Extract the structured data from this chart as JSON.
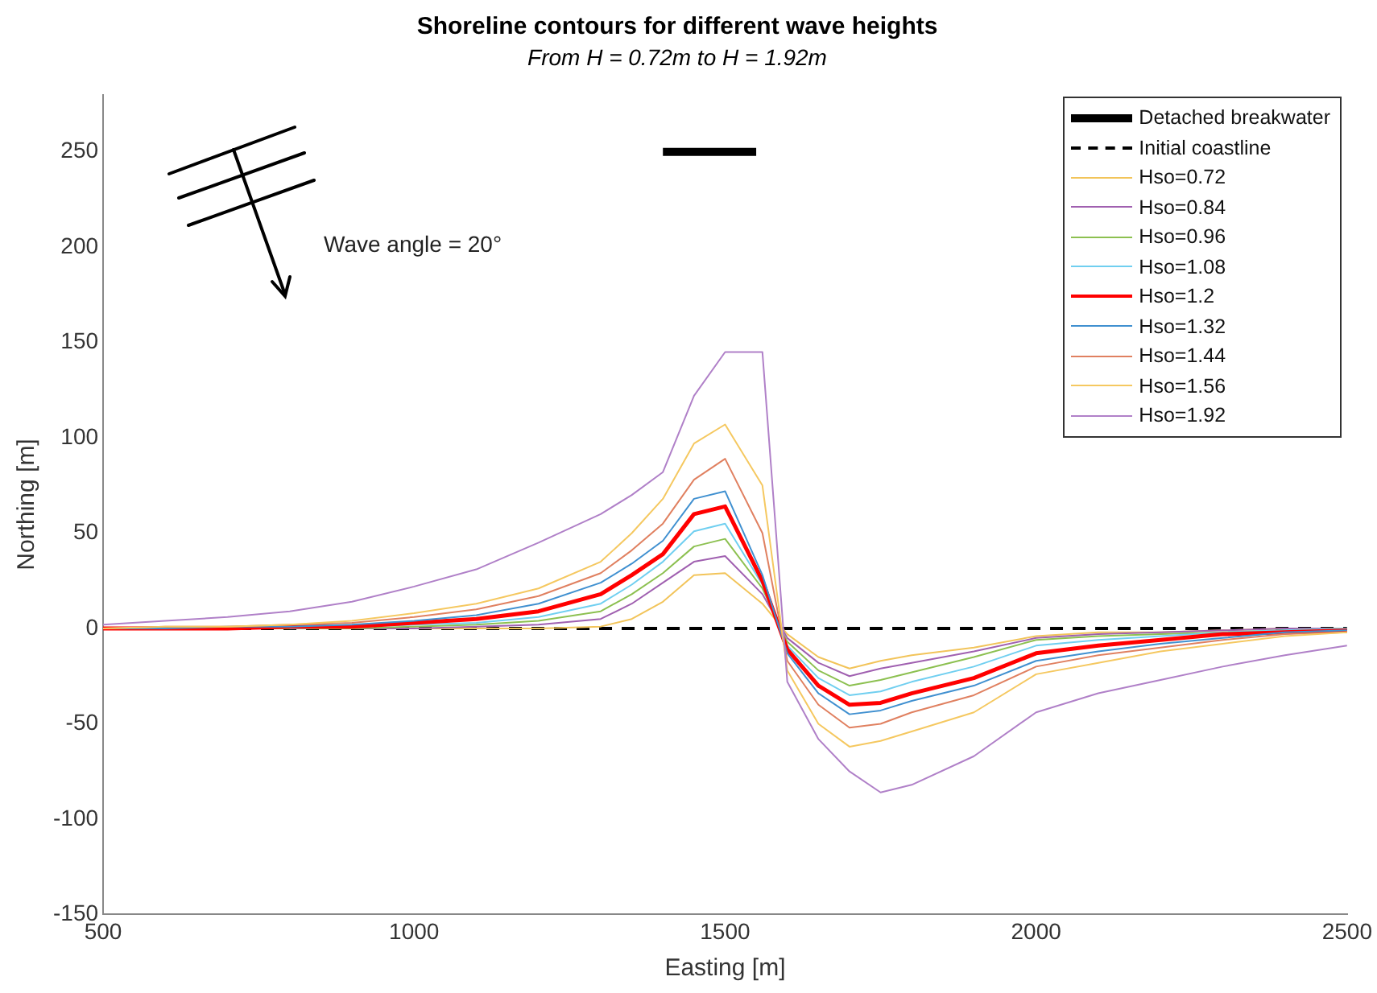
{
  "chart_data": {
    "type": "line",
    "title": "Shoreline contours for different wave heights",
    "subtitle": "From H = 0.72m to H = 1.92m",
    "xlabel": "Easting [m]",
    "ylabel": "Northing [m]",
    "annotations": [
      "Wave angle = 20°"
    ],
    "x": [
      500,
      600,
      700,
      800,
      900,
      1000,
      1100,
      1200,
      1300,
      1350,
      1400,
      1450,
      1500,
      1560,
      1600,
      1650,
      1700,
      1750,
      1800,
      1900,
      2000,
      2100,
      2200,
      2300,
      2400,
      2500
    ],
    "series": [
      {
        "name": "Detached breakwater",
        "color": "#000000",
        "x": [
          1400,
          1550
        ],
        "values": [
          250,
          250
        ],
        "line_style": "solid"
      },
      {
        "name": "Initial coastline",
        "color": "#000000",
        "x": [
          500,
          2500
        ],
        "values": [
          0,
          0
        ],
        "line_style": "dashed"
      },
      {
        "name": "Hso=0.72",
        "color": "#f2c45a",
        "values": [
          0,
          0,
          0,
          0,
          0,
          0,
          0,
          0,
          1,
          5,
          14,
          28,
          29,
          13,
          -3,
          -15,
          -21,
          -17,
          -14,
          -10,
          -4,
          -2,
          -2,
          -1,
          0,
          0
        ]
      },
      {
        "name": "Hso=0.84",
        "color": "#a060b0",
        "values": [
          0,
          0,
          0,
          0,
          0,
          0,
          1,
          2,
          5,
          13,
          24,
          35,
          38,
          18,
          -5,
          -18,
          -25,
          -21,
          -18,
          -12,
          -5,
          -3,
          -2,
          -1,
          0,
          0
        ]
      },
      {
        "name": "Hso=0.96",
        "color": "#8cc050",
        "values": [
          0,
          0,
          0,
          0,
          0,
          1,
          2,
          4,
          9,
          18,
          29,
          43,
          47,
          21,
          -7,
          -22,
          -30,
          -27,
          -23,
          -15,
          -6,
          -4,
          -3,
          -2,
          -1,
          0
        ]
      },
      {
        "name": "Hso=1.08",
        "color": "#70cff0",
        "values": [
          null,
          null,
          null,
          0,
          1,
          2,
          3,
          6,
          13,
          23,
          35,
          51,
          55,
          23,
          -9,
          -26,
          -35,
          -33,
          -28,
          -20,
          -9,
          -6,
          -4,
          -2,
          -1,
          0
        ]
      },
      {
        "name": "Hso=1.2",
        "color": "#ff0000",
        "values": [
          0,
          0,
          0,
          1,
          1,
          3,
          5,
          9,
          18,
          28,
          39,
          60,
          64,
          25,
          -11,
          -30,
          -40,
          -39,
          -34,
          -26,
          -13,
          -9,
          -6,
          -3,
          -2,
          -1
        ]
      },
      {
        "name": "Hso=1.32",
        "color": "#4090d0",
        "values": [
          0,
          0,
          1,
          1,
          2,
          4,
          7,
          13,
          24,
          34,
          46,
          68,
          72,
          28,
          -13,
          -34,
          -45,
          -43,
          -38,
          -30,
          -17,
          -12,
          -8,
          -5,
          -2,
          -1
        ]
      },
      {
        "name": "Hso=1.44",
        "color": "#e08060",
        "values": [
          0,
          1,
          1,
          2,
          3,
          6,
          10,
          17,
          29,
          41,
          55,
          78,
          89,
          50,
          -17,
          -40,
          -52,
          -50,
          -44,
          -35,
          -20,
          -14,
          -10,
          -6,
          -3,
          -2
        ]
      },
      {
        "name": "Hso=1.56",
        "color": "#f5c860",
        "values": [
          0,
          1,
          1,
          2,
          4,
          8,
          13,
          21,
          35,
          50,
          68,
          97,
          107,
          75,
          -22,
          -50,
          -62,
          -59,
          -54,
          -44,
          -24,
          -18,
          -12,
          -8,
          -4,
          -2
        ]
      },
      {
        "name": "Hso=1.92",
        "color": "#b080c8",
        "values": [
          2,
          4,
          6,
          9,
          14,
          22,
          31,
          45,
          60,
          70,
          82,
          122,
          145,
          145,
          -28,
          -58,
          -75,
          -86,
          -82,
          -67,
          -44,
          -34,
          -27,
          -20,
          -14,
          -9
        ]
      }
    ],
    "xlim": [
      500,
      2500
    ],
    "xticks": [
      500,
      1000,
      1500,
      2000,
      2500
    ],
    "ylim": [
      -150,
      280
    ],
    "yticks": [
      -150,
      -100,
      -50,
      0,
      50,
      100,
      150,
      200,
      250
    ],
    "grid": false,
    "legend": "top right",
    "marker": "none",
    "line_style": "solid"
  }
}
